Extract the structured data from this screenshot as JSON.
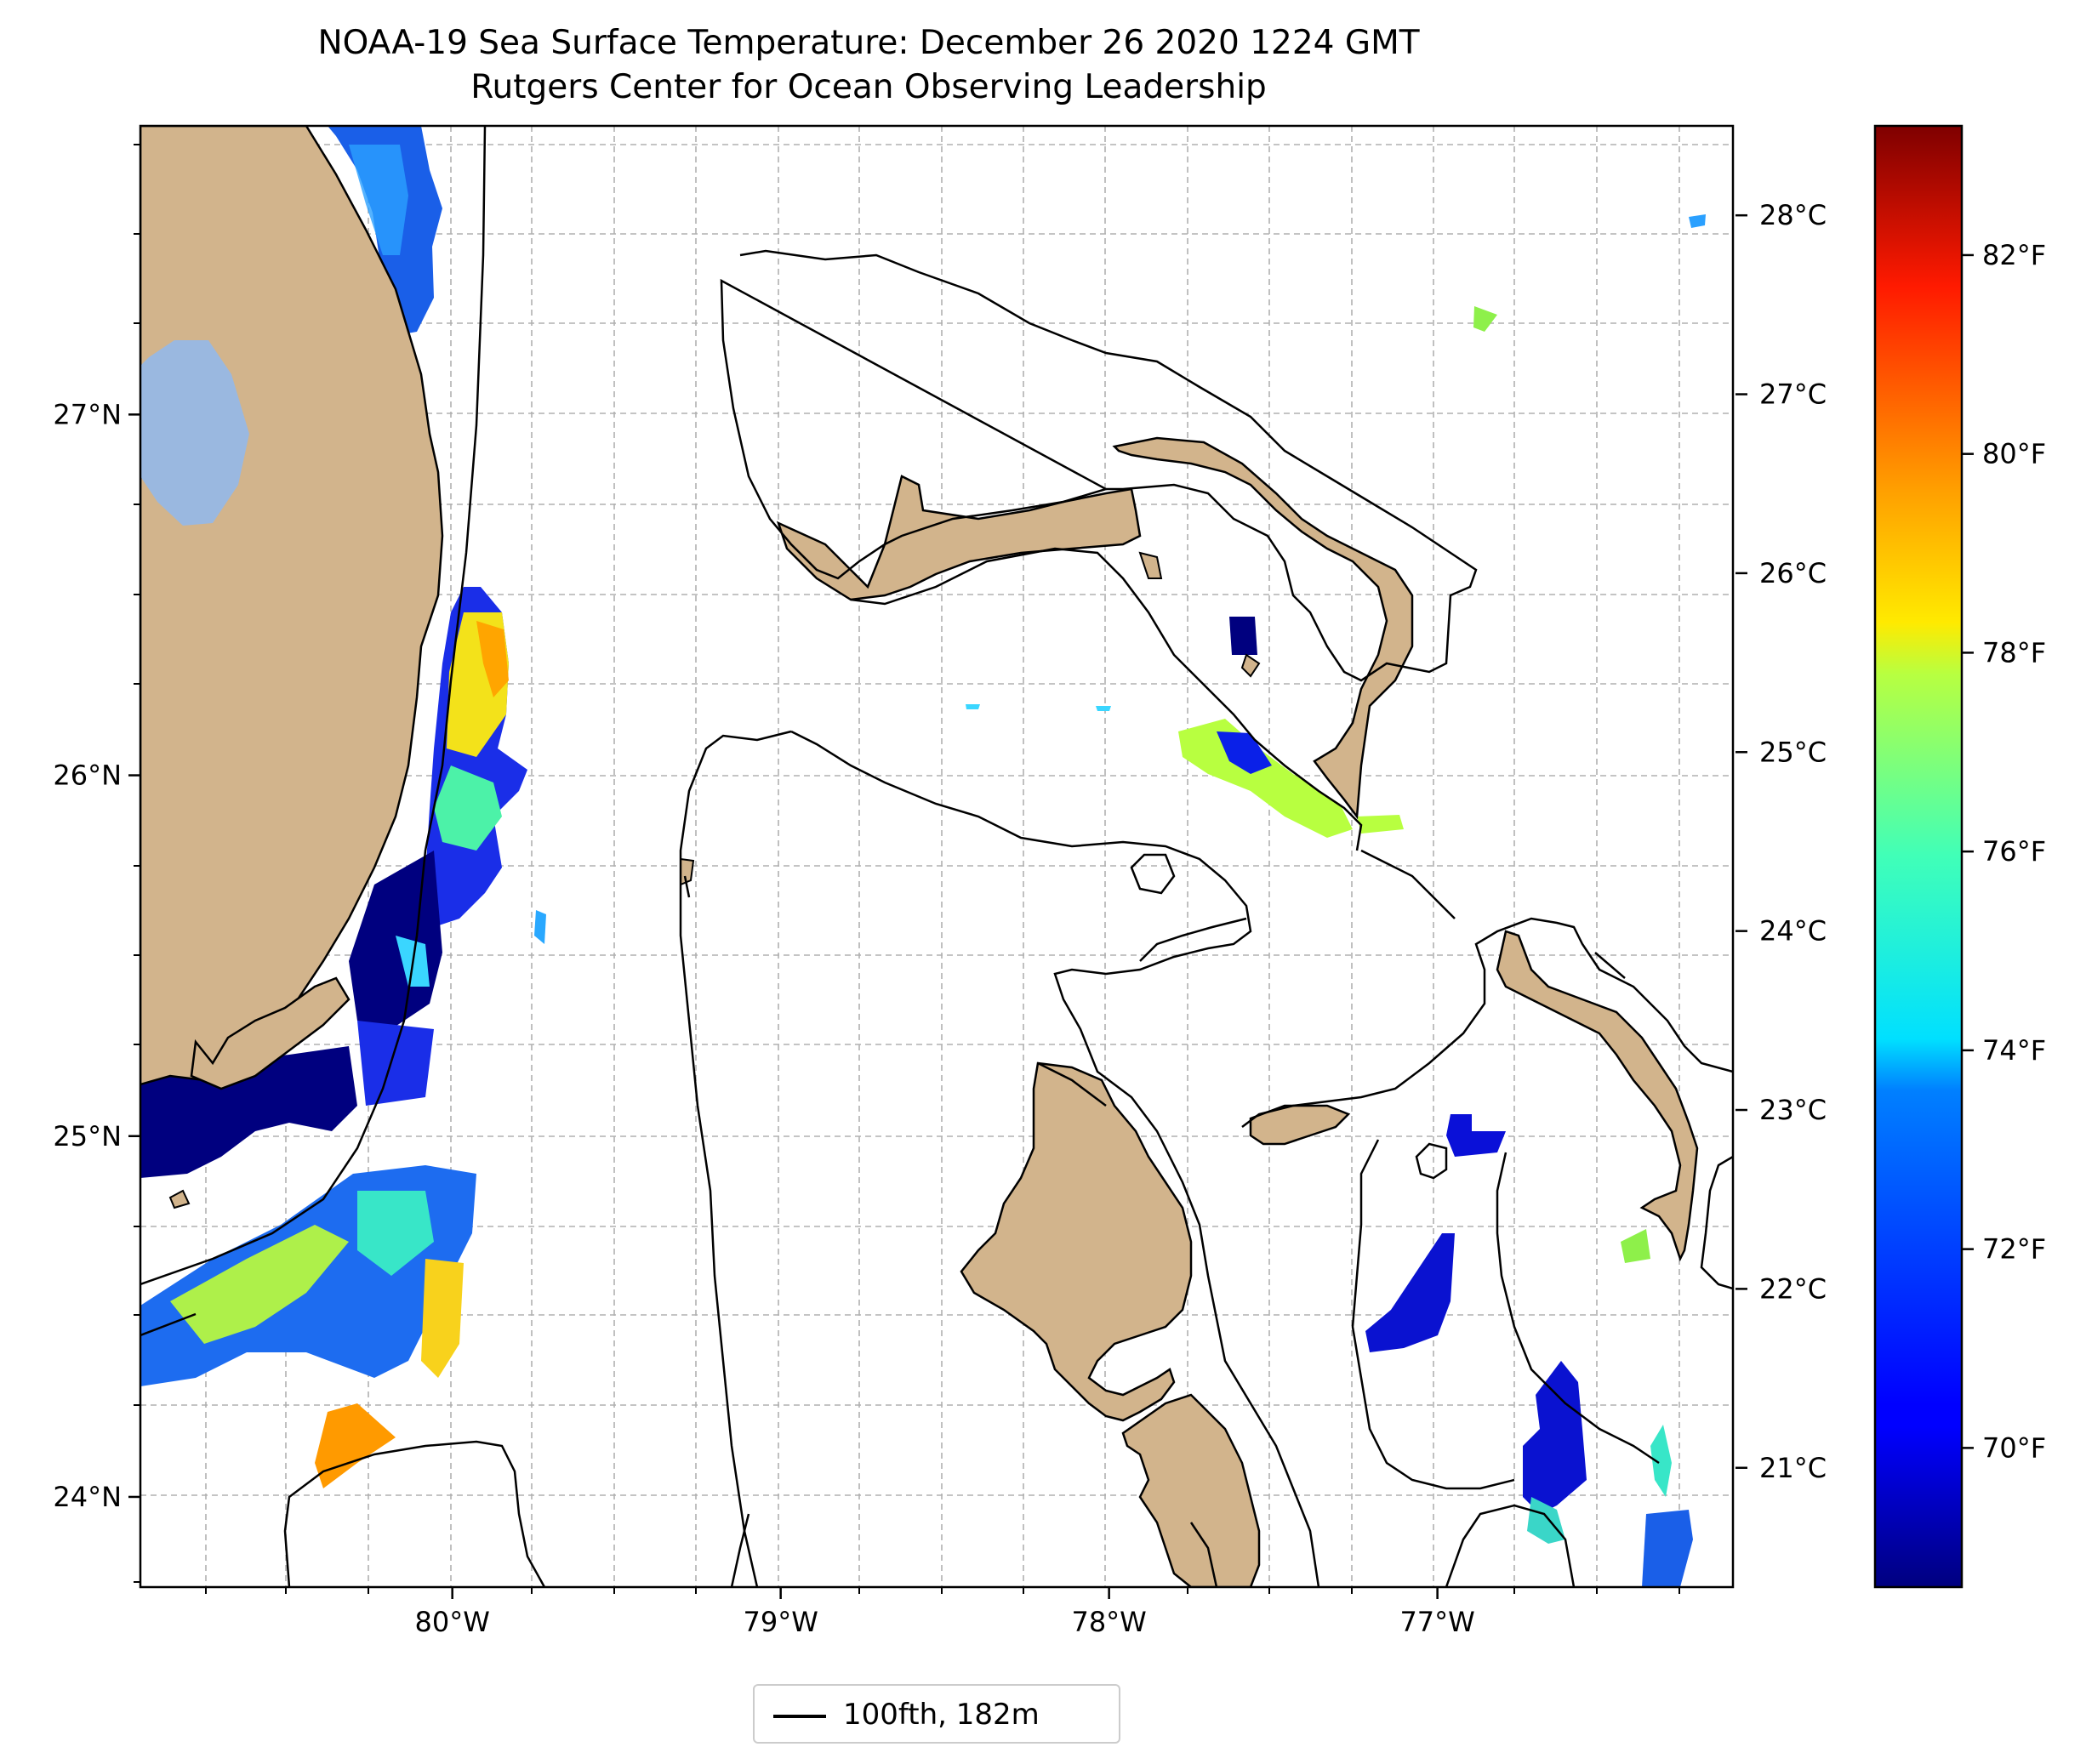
{
  "title": {
    "line1": "NOAA-19 Sea Surface Temperature: December 26 2020 1224 GMT",
    "line2": "Rutgers Center for Ocean Observing Leadership"
  },
  "map": {
    "lon_range": [
      -80.95,
      -76.1
    ],
    "lat_range": [
      23.75,
      27.8
    ],
    "x_ticks": [
      {
        "value": -80,
        "label": "80°W"
      },
      {
        "value": -79,
        "label": "79°W"
      },
      {
        "value": -78,
        "label": "78°W"
      },
      {
        "value": -77,
        "label": "77°W"
      }
    ],
    "y_ticks": [
      {
        "value": 24,
        "label": "24°N"
      },
      {
        "value": 25,
        "label": "25°N"
      },
      {
        "value": 26,
        "label": "26°N"
      },
      {
        "value": 27,
        "label": "27°N"
      }
    ],
    "grid": "dashed",
    "land_color": "#d2b48c",
    "lake_color": "#9ab8e0",
    "contour_color": "#000000"
  },
  "colorbar": {
    "colormap": "jet",
    "celsius_ticks": [
      {
        "value": 21,
        "label": "21°C"
      },
      {
        "value": 22,
        "label": "22°C"
      },
      {
        "value": 23,
        "label": "23°C"
      },
      {
        "value": 24,
        "label": "24°C"
      },
      {
        "value": 25,
        "label": "25°C"
      },
      {
        "value": 26,
        "label": "26°C"
      },
      {
        "value": 27,
        "label": "27°C"
      },
      {
        "value": 28,
        "label": "28°C"
      }
    ],
    "fahrenheit_ticks": [
      {
        "value": 70,
        "label": "70°F"
      },
      {
        "value": 72,
        "label": "72°F"
      },
      {
        "value": 74,
        "label": "74°F"
      },
      {
        "value": 76,
        "label": "76°F"
      },
      {
        "value": 78,
        "label": "78°F"
      },
      {
        "value": 80,
        "label": "80°F"
      },
      {
        "value": 82,
        "label": "82°F"
      }
    ]
  },
  "legend": {
    "entries": [
      {
        "label": "100fth, 182m",
        "color": "#000000"
      }
    ],
    "position": "bottom-center"
  }
}
